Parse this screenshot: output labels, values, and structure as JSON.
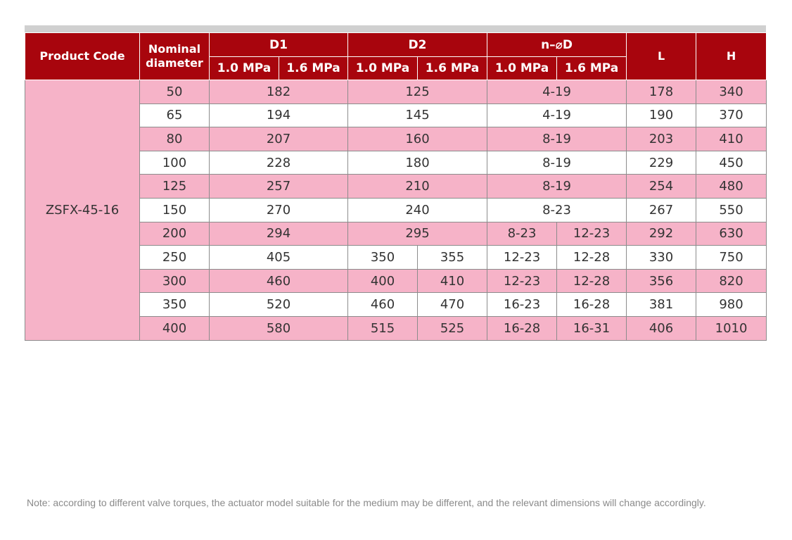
{
  "header": {
    "product_code": "Product Code",
    "nominal_diameter": "Nominal diameter",
    "d1": "D1",
    "d2": "D2",
    "n_od": "n–⌀D",
    "l": "L",
    "h": "H",
    "p10": "1.0 MPa",
    "p16": "1.6 MPa"
  },
  "product_code": "ZSFX-45-16",
  "rows": [
    {
      "dn": "50",
      "d1": [
        "182"
      ],
      "d2": [
        "125"
      ],
      "nod": [
        "4-19"
      ],
      "l": "178",
      "h": "340"
    },
    {
      "dn": "65",
      "d1": [
        "194"
      ],
      "d2": [
        "145"
      ],
      "nod": [
        "4-19"
      ],
      "l": "190",
      "h": "370"
    },
    {
      "dn": "80",
      "d1": [
        "207"
      ],
      "d2": [
        "160"
      ],
      "nod": [
        "8-19"
      ],
      "l": "203",
      "h": "410"
    },
    {
      "dn": "100",
      "d1": [
        "228"
      ],
      "d2": [
        "180"
      ],
      "nod": [
        "8-19"
      ],
      "l": "229",
      "h": "450"
    },
    {
      "dn": "125",
      "d1": [
        "257"
      ],
      "d2": [
        "210"
      ],
      "nod": [
        "8-19"
      ],
      "l": "254",
      "h": "480"
    },
    {
      "dn": "150",
      "d1": [
        "270"
      ],
      "d2": [
        "240"
      ],
      "nod": [
        "8-23"
      ],
      "l": "267",
      "h": "550"
    },
    {
      "dn": "200",
      "d1": [
        "294"
      ],
      "d2": [
        "295"
      ],
      "nod": [
        "8-23",
        "12-23"
      ],
      "l": "292",
      "h": "630"
    },
    {
      "dn": "250",
      "d1": [
        "405"
      ],
      "d2": [
        "350",
        "355"
      ],
      "nod": [
        "12-23",
        "12-28"
      ],
      "l": "330",
      "h": "750"
    },
    {
      "dn": "300",
      "d1": [
        "460"
      ],
      "d2": [
        "400",
        "410"
      ],
      "nod": [
        "12-23",
        "12-28"
      ],
      "l": "356",
      "h": "820"
    },
    {
      "dn": "350",
      "d1": [
        "520"
      ],
      "d2": [
        "460",
        "470"
      ],
      "nod": [
        "16-23",
        "16-28"
      ],
      "l": "381",
      "h": "980"
    },
    {
      "dn": "400",
      "d1": [
        "580"
      ],
      "d2": [
        "515",
        "525"
      ],
      "nod": [
        "16-28",
        "16-31"
      ],
      "l": "406",
      "h": "1010"
    }
  ],
  "note": "Note: according to different valve torques, the actuator model suitable for the medium may be different, and the relevant dimensions will change accordingly.",
  "colors": {
    "header_red": "#a8050d",
    "row_pink": "#f6b3c8",
    "row_white": "#ffffff"
  }
}
